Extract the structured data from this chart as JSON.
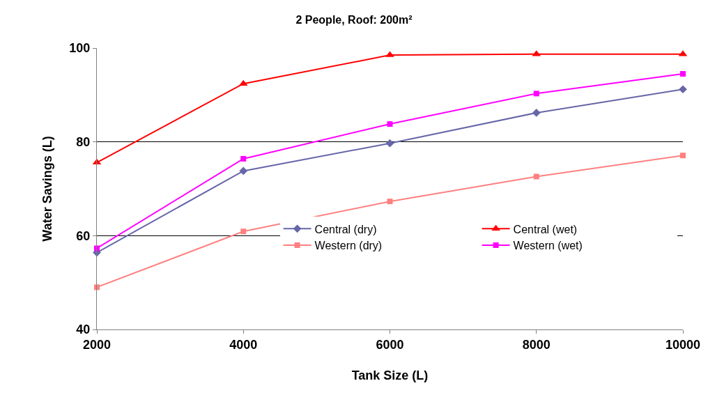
{
  "chart_data": {
    "type": "line",
    "title": "2 People, Roof: 200m²",
    "xlabel": "Tank Size (L)",
    "ylabel": "Water Savings (L)",
    "x": [
      2000,
      4000,
      6000,
      8000,
      10000
    ],
    "xlim": [
      2000,
      10000
    ],
    "xticks": [
      2000,
      4000,
      6000,
      8000,
      10000
    ],
    "ylim": [
      40,
      100
    ],
    "yticks": [
      40,
      60,
      80,
      100
    ],
    "grid": "y",
    "legend": "bottom right",
    "series": [
      {
        "name": "Central (dry)",
        "color": "#6666a8",
        "marker": "diamond",
        "values": [
          56.4,
          73.8,
          79.7,
          86.2,
          91.2
        ]
      },
      {
        "name": "Central (wet)",
        "color": "#ff0000",
        "marker": "triangle",
        "values": [
          75.6,
          92.4,
          98.5,
          98.7,
          98.7
        ]
      },
      {
        "name": "Western (dry)",
        "color": "#ff8080",
        "marker": "square",
        "values": [
          49.0,
          60.9,
          67.3,
          72.6,
          77.1
        ]
      },
      {
        "name": "Western (wet)",
        "color": "#ff00ff",
        "marker": "square",
        "values": [
          57.3,
          76.4,
          83.8,
          90.3,
          94.5
        ]
      }
    ]
  }
}
